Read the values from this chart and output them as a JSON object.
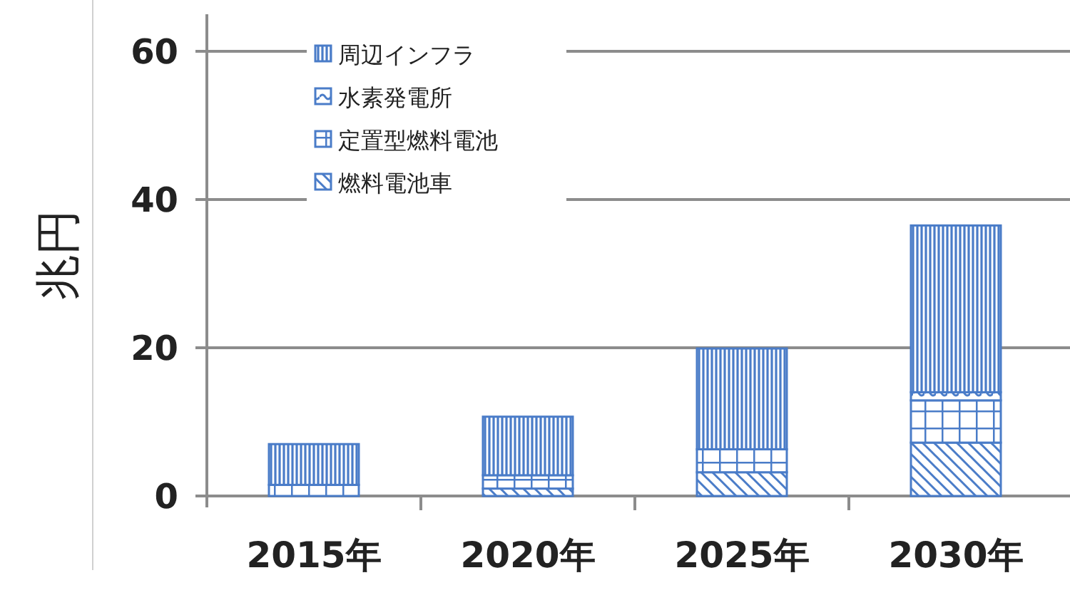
{
  "chart_data": {
    "type": "bar",
    "stacked": true,
    "ylabel": "兆円",
    "categories": [
      "2015年",
      "2020年",
      "2025年",
      "2030年"
    ],
    "series": [
      {
        "name": "燃料電池車",
        "color": "#4a7cc8",
        "values": [
          0,
          1,
          3.2,
          7.2
        ]
      },
      {
        "name": "定置型燃料電池",
        "color": "#4a7cc8",
        "values": [
          1.5,
          1.8,
          3.1,
          5.7
        ]
      },
      {
        "name": "水素発電所",
        "color": "#4a7cc8",
        "values": [
          0,
          0,
          0,
          1.1
        ]
      },
      {
        "name": "周辺インフラ",
        "color": "#4a7cc8",
        "values": [
          5.5,
          7.9,
          13.6,
          22.5
        ]
      }
    ],
    "ylim": [
      0,
      65
    ],
    "yticks": [
      0,
      20,
      40,
      60
    ],
    "grid": "y",
    "legend": "top left"
  }
}
